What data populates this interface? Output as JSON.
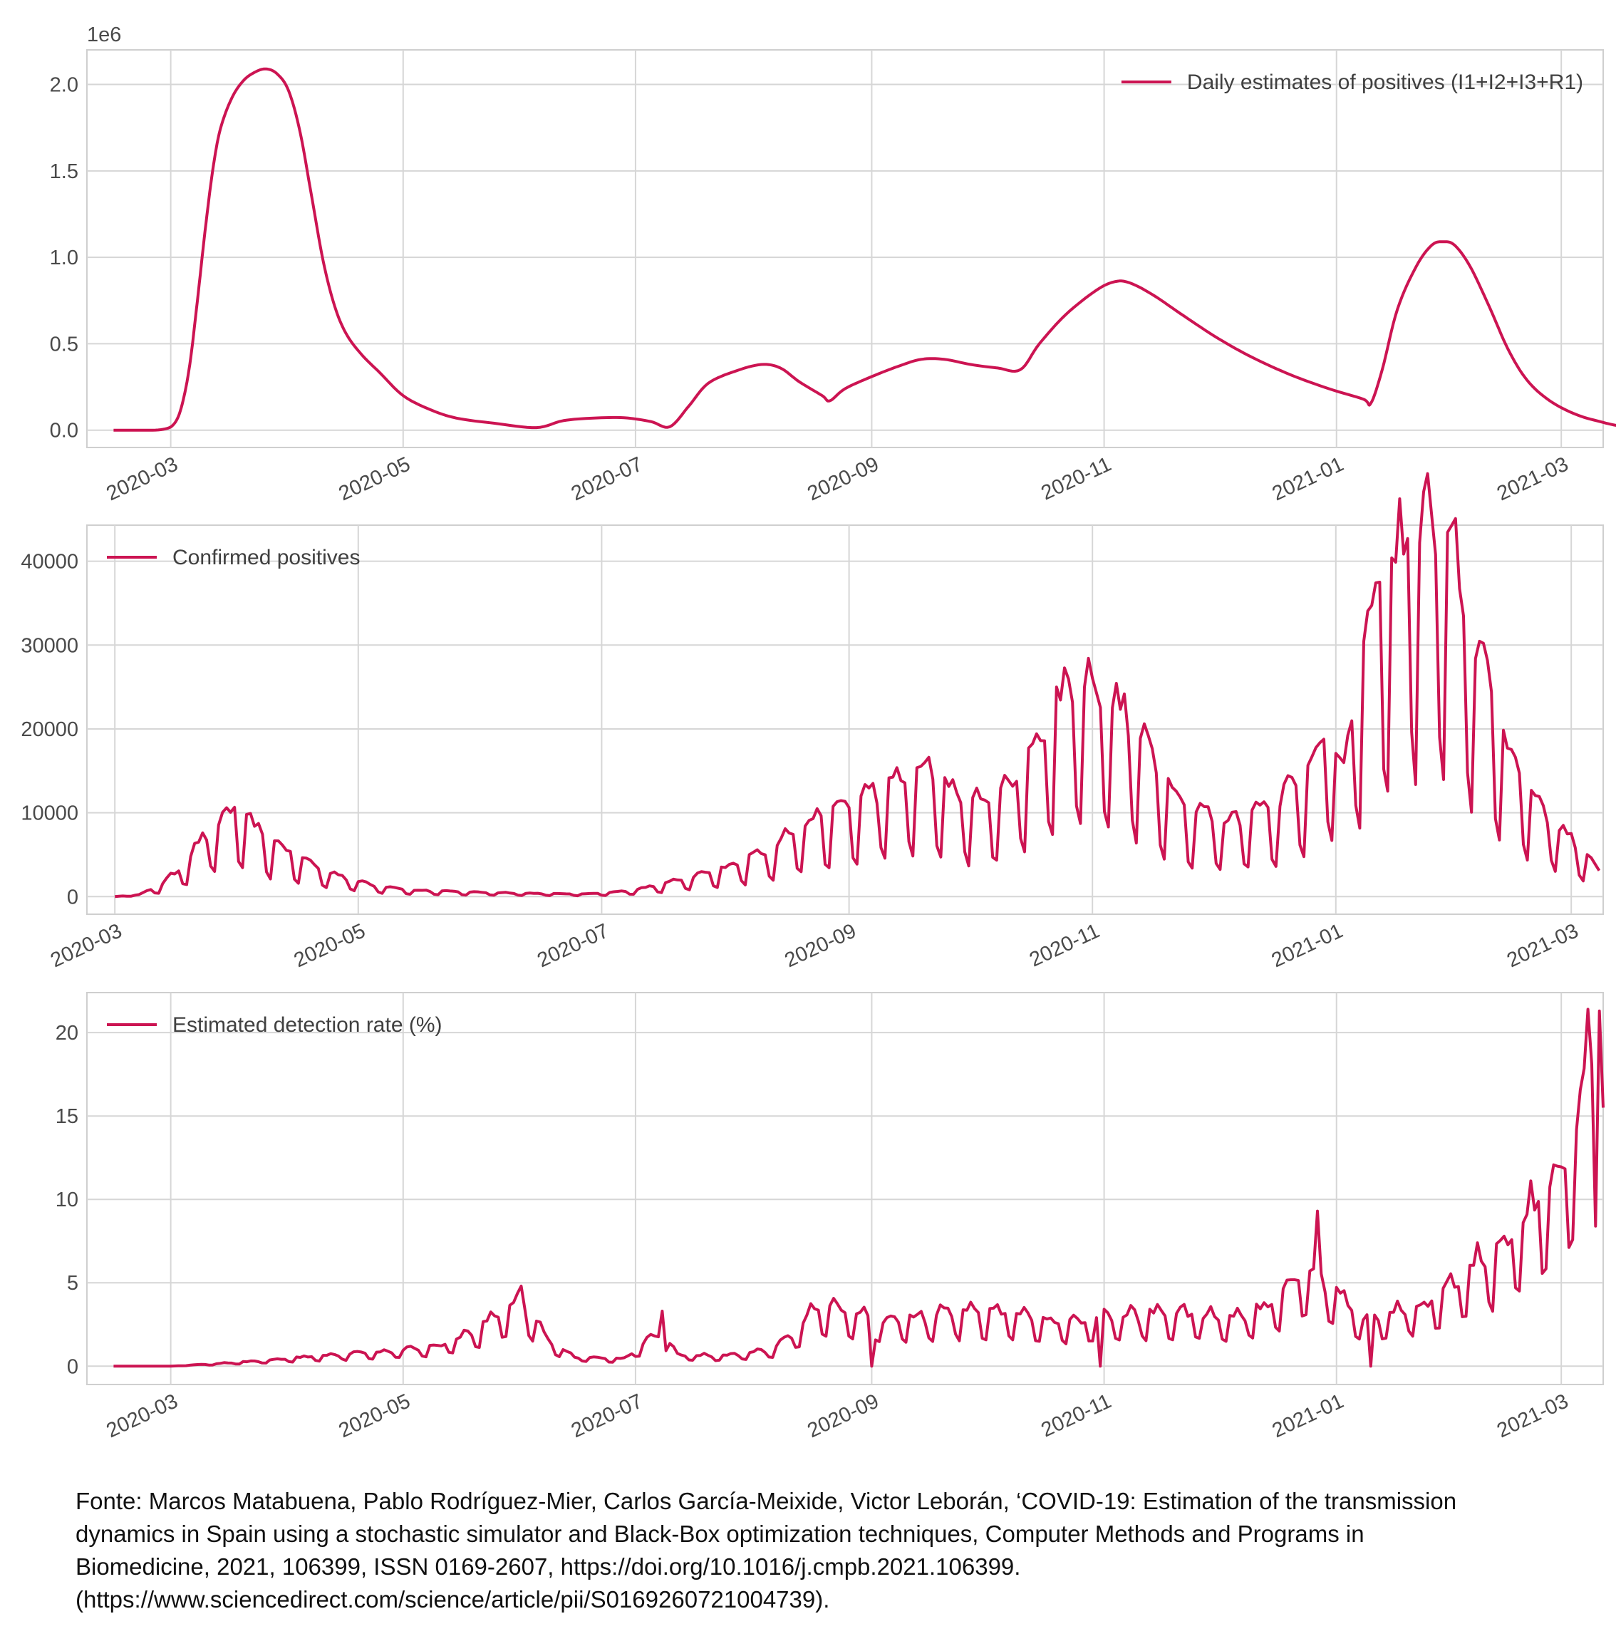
{
  "chart_data": [
    {
      "type": "line",
      "offset_text": "1e6",
      "legend": "Daily estimates of positives (I1+I2+I3+R1)",
      "legend_position": "top-right",
      "grid": true,
      "color": "#cc1452",
      "xlim": [
        "2020-02-08",
        "2021-03-12"
      ],
      "ylim": [
        -0.1,
        2.2
      ],
      "yticks": [
        0.0,
        0.5,
        1.0,
        1.5,
        2.0
      ],
      "ytick_labels": [
        "0.0",
        "0.5",
        "1.0",
        "1.5",
        "2.0"
      ],
      "xticks": [
        "2020-03-01",
        "2020-05-01",
        "2020-07-01",
        "2020-09-01",
        "2020-11-01",
        "2021-01-01",
        "2021-03-01"
      ],
      "xtick_labels": [
        "2020-03",
        "2020-05",
        "2020-07",
        "2020-09",
        "2020-11",
        "2021-01",
        "2021-03"
      ],
      "points": [
        [
          "2020-02-15",
          0.0
        ],
        [
          "2020-02-22",
          0.0
        ],
        [
          "2020-02-28",
          0.005
        ],
        [
          "2020-03-02",
          0.04
        ],
        [
          "2020-03-04",
          0.15
        ],
        [
          "2020-03-06",
          0.38
        ],
        [
          "2020-03-08",
          0.75
        ],
        [
          "2020-03-10",
          1.15
        ],
        [
          "2020-03-12",
          1.5
        ],
        [
          "2020-03-14",
          1.74
        ],
        [
          "2020-03-17",
          1.92
        ],
        [
          "2020-03-20",
          2.02
        ],
        [
          "2020-03-23",
          2.07
        ],
        [
          "2020-03-26",
          2.09
        ],
        [
          "2020-03-29",
          2.06
        ],
        [
          "2020-04-01",
          1.96
        ],
        [
          "2020-04-04",
          1.72
        ],
        [
          "2020-04-07",
          1.35
        ],
        [
          "2020-04-10",
          0.98
        ],
        [
          "2020-04-13",
          0.72
        ],
        [
          "2020-04-16",
          0.56
        ],
        [
          "2020-04-20",
          0.44
        ],
        [
          "2020-04-25",
          0.33
        ],
        [
          "2020-05-01",
          0.2
        ],
        [
          "2020-05-08",
          0.12
        ],
        [
          "2020-05-15",
          0.07
        ],
        [
          "2020-05-25",
          0.04
        ],
        [
          "2020-06-05",
          0.015
        ],
        [
          "2020-06-12",
          0.055
        ],
        [
          "2020-06-20",
          0.07
        ],
        [
          "2020-06-28",
          0.072
        ],
        [
          "2020-07-05",
          0.05
        ],
        [
          "2020-07-10",
          0.02
        ],
        [
          "2020-07-15",
          0.14
        ],
        [
          "2020-07-20",
          0.27
        ],
        [
          "2020-07-27",
          0.34
        ],
        [
          "2020-08-03",
          0.38
        ],
        [
          "2020-08-08",
          0.36
        ],
        [
          "2020-08-13",
          0.28
        ],
        [
          "2020-08-19",
          0.2
        ],
        [
          "2020-08-21",
          0.17
        ],
        [
          "2020-08-25",
          0.24
        ],
        [
          "2020-09-01",
          0.31
        ],
        [
          "2020-09-08",
          0.37
        ],
        [
          "2020-09-14",
          0.41
        ],
        [
          "2020-09-20",
          0.41
        ],
        [
          "2020-09-27",
          0.38
        ],
        [
          "2020-10-04",
          0.36
        ],
        [
          "2020-10-10",
          0.35
        ],
        [
          "2020-10-15",
          0.5
        ],
        [
          "2020-10-22",
          0.67
        ],
        [
          "2020-10-30",
          0.81
        ],
        [
          "2020-11-04",
          0.86
        ],
        [
          "2020-11-08",
          0.85
        ],
        [
          "2020-11-14",
          0.78
        ],
        [
          "2020-11-22",
          0.66
        ],
        [
          "2020-12-01",
          0.53
        ],
        [
          "2020-12-10",
          0.42
        ],
        [
          "2020-12-20",
          0.32
        ],
        [
          "2020-12-30",
          0.24
        ],
        [
          "2021-01-08",
          0.18
        ],
        [
          "2021-01-10",
          0.155
        ],
        [
          "2021-01-13",
          0.35
        ],
        [
          "2021-01-17",
          0.7
        ],
        [
          "2021-01-22",
          0.95
        ],
        [
          "2021-01-26",
          1.07
        ],
        [
          "2021-01-29",
          1.09
        ],
        [
          "2021-02-01",
          1.07
        ],
        [
          "2021-02-05",
          0.95
        ],
        [
          "2021-02-10",
          0.72
        ],
        [
          "2021-02-15",
          0.47
        ],
        [
          "2021-02-20",
          0.29
        ],
        [
          "2021-02-26",
          0.17
        ],
        [
          "2021-03-05",
          0.09
        ],
        [
          "2021-03-12",
          0.045
        ],
        [
          "2021-03-16",
          0.025
        ]
      ]
    },
    {
      "type": "line",
      "legend": "Confirmed positives",
      "legend_position": "top-left",
      "grid": true,
      "color": "#cc1452",
      "xlim": [
        "2020-02-23",
        "2021-03-09"
      ],
      "ylim": [
        -2100,
        44300
      ],
      "yticks": [
        0,
        10000,
        20000,
        30000,
        40000
      ],
      "ytick_labels": [
        "0",
        "10000",
        "20000",
        "30000",
        "40000"
      ],
      "xticks": [
        "2020-03-01",
        "2020-05-01",
        "2020-07-01",
        "2020-09-01",
        "2020-11-01",
        "2021-01-01",
        "2021-03-01"
      ],
      "xtick_labels": [
        "2020-03",
        "2020-05",
        "2020-07",
        "2020-09",
        "2020-11",
        "2021-01",
        "2021-03"
      ],
      "anchors": [
        [
          "2020-03-01",
          0
        ],
        [
          "2020-03-07",
          200
        ],
        [
          "2020-03-12",
          1200
        ],
        [
          "2020-03-16",
          2600
        ],
        [
          "2020-03-20",
          4800
        ],
        [
          "2020-03-25",
          7600
        ],
        [
          "2020-03-31",
          10000
        ],
        [
          "2020-04-07",
          7000
        ],
        [
          "2020-04-14",
          5000
        ],
        [
          "2020-04-21",
          3300
        ],
        [
          "2020-04-28",
          2100
        ],
        [
          "2020-05-05",
          1300
        ],
        [
          "2020-05-15",
          700
        ],
        [
          "2020-05-30",
          500
        ],
        [
          "2020-06-15",
          350
        ],
        [
          "2020-06-25",
          300
        ],
        [
          "2020-07-02",
          400
        ],
        [
          "2020-07-10",
          800
        ],
        [
          "2020-07-20",
          1800
        ],
        [
          "2020-07-30",
          3000
        ],
        [
          "2020-08-10",
          5000
        ],
        [
          "2020-08-20",
          8000
        ],
        [
          "2020-09-01",
          10500
        ],
        [
          "2020-09-10",
          12500
        ],
        [
          "2020-09-20",
          14500
        ],
        [
          "2020-09-27",
          12000
        ],
        [
          "2020-10-05",
          10500
        ],
        [
          "2020-10-12",
          13000
        ],
        [
          "2020-10-20",
          19000
        ],
        [
          "2020-10-27",
          24500
        ],
        [
          "2020-11-03",
          23500
        ],
        [
          "2020-11-10",
          20000
        ],
        [
          "2020-11-17",
          15000
        ],
        [
          "2020-11-25",
          10000
        ],
        [
          "2020-12-05",
          8500
        ],
        [
          "2020-12-12",
          10000
        ],
        [
          "2020-12-18",
          11000
        ],
        [
          "2020-12-23",
          13500
        ],
        [
          "2020-12-30",
          19000
        ],
        [
          "2021-01-03",
          14000
        ],
        [
          "2021-01-08",
          28000
        ],
        [
          "2021-01-14",
          36000
        ],
        [
          "2021-01-19",
          40500
        ],
        [
          "2021-01-25",
          42000
        ],
        [
          "2021-01-31",
          37000
        ],
        [
          "2021-02-06",
          27000
        ],
        [
          "2021-02-13",
          17000
        ],
        [
          "2021-02-20",
          11000
        ],
        [
          "2021-02-27",
          7500
        ],
        [
          "2021-03-05",
          4500
        ],
        [
          "2021-03-08",
          3000
        ]
      ]
    },
    {
      "type": "line",
      "legend": "Estimated detection rate (%)",
      "legend_position": "top-left",
      "grid": true,
      "color": "#cc1452",
      "xlim": [
        "2020-02-08",
        "2021-03-12"
      ],
      "ylim": [
        -1.1,
        22.4
      ],
      "yticks": [
        0,
        5,
        10,
        15,
        20
      ],
      "ytick_labels": [
        "0",
        "5",
        "10",
        "15",
        "20"
      ],
      "xticks": [
        "2020-03-01",
        "2020-05-01",
        "2020-07-01",
        "2020-09-01",
        "2020-11-01",
        "2021-01-01",
        "2021-03-01"
      ],
      "xtick_labels": [
        "2020-03",
        "2020-05",
        "2020-07",
        "2020-09",
        "2020-11",
        "2021-01",
        "2021-03"
      ],
      "anchors": [
        [
          "2020-02-15",
          0
        ],
        [
          "2020-03-01",
          0
        ],
        [
          "2020-03-10",
          0.1
        ],
        [
          "2020-03-25",
          0.3
        ],
        [
          "2020-04-10",
          0.6
        ],
        [
          "2020-04-25",
          0.8
        ],
        [
          "2020-05-10",
          1.1
        ],
        [
          "2020-05-20",
          2.0
        ],
        [
          "2020-06-01",
          3.8
        ],
        [
          "2020-06-08",
          1.5
        ],
        [
          "2020-06-15",
          0.5
        ],
        [
          "2020-06-28",
          0.4
        ],
        [
          "2020-07-04",
          1.5
        ],
        [
          "2020-07-08",
          2.0
        ],
        [
          "2020-07-12",
          0.6
        ],
        [
          "2020-07-25",
          0.6
        ],
        [
          "2020-08-05",
          0.9
        ],
        [
          "2020-08-12",
          1.8
        ],
        [
          "2020-08-18",
          3.5
        ],
        [
          "2020-08-25",
          3.2
        ],
        [
          "2020-09-05",
          2.5
        ],
        [
          "2020-09-20",
          3.0
        ],
        [
          "2020-10-05",
          3.0
        ],
        [
          "2020-10-20",
          2.4
        ],
        [
          "2020-11-05",
          2.8
        ],
        [
          "2020-11-20",
          3.0
        ],
        [
          "2020-12-05",
          2.6
        ],
        [
          "2020-12-15",
          3.5
        ],
        [
          "2020-12-25",
          5.5
        ],
        [
          "2021-01-02",
          4.0
        ],
        [
          "2021-01-08",
          2.5
        ],
        [
          "2021-01-15",
          3.0
        ],
        [
          "2021-01-25",
          3.5
        ],
        [
          "2021-02-01",
          4.5
        ],
        [
          "2021-02-08",
          6.0
        ],
        [
          "2021-02-15",
          7.0
        ],
        [
          "2021-02-22",
          9.0
        ],
        [
          "2021-03-01",
          11.0
        ],
        [
          "2021-03-05",
          14.0
        ],
        [
          "2021-03-09",
          17.5
        ],
        [
          "2021-03-12",
          17.0
        ]
      ]
    }
  ],
  "caption": [
    "Fonte: Marcos Matabuena, Pablo Rodríguez-Mier, Carlos García-Meixide, Victor Leborán, ‘COVID-19: Estimation of the transmission",
    "dynamics in Spain using a stochastic simulator and Black-Box optimization techniques, Computer Methods and Programs in",
    "Biomedicine, 2021, 106399, ISSN 0169-2607, https://doi.org/10.1016/j.cmpb.2021.106399.",
    "(https://www.sciencedirect.com/science/article/pii/S0169260721004739)."
  ]
}
